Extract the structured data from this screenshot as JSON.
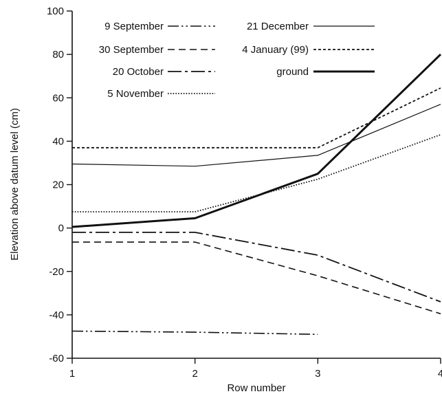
{
  "chart_data": {
    "type": "line",
    "title": "",
    "xlabel": "Row number",
    "ylabel": "Elevation above datum level (cm)",
    "xlim": [
      1,
      4
    ],
    "ylim": [
      -60,
      100
    ],
    "xticks": [
      1,
      2,
      3,
      4
    ],
    "yticks": [
      -60,
      -40,
      -20,
      0,
      20,
      40,
      60,
      80,
      100
    ],
    "grid": false,
    "legend_position": "top-left",
    "series": [
      {
        "name": "9 September",
        "style": "dashdotdot",
        "color": "#111111",
        "x": [
          1,
          2,
          3
        ],
        "y": [
          -47.5,
          -48,
          -49
        ]
      },
      {
        "name": "30 September",
        "style": "dashed",
        "color": "#111111",
        "x": [
          1,
          2,
          3,
          4
        ],
        "y": [
          -6.5,
          -6.5,
          -22,
          -39.5
        ]
      },
      {
        "name": "20 October",
        "style": "longdashdot",
        "color": "#111111",
        "x": [
          1,
          2,
          3,
          4
        ],
        "y": [
          -2,
          -2,
          -12.5,
          -34
        ]
      },
      {
        "name": "5 November",
        "style": "dotted",
        "color": "#111111",
        "x": [
          1,
          2,
          3,
          4
        ],
        "y": [
          7.5,
          7.5,
          22.5,
          43
        ]
      },
      {
        "name": "21 December",
        "style": "thin",
        "color": "#111111",
        "x": [
          1,
          2,
          3,
          4
        ],
        "y": [
          29.5,
          28.5,
          33.5,
          57
        ]
      },
      {
        "name": "4 January (99)",
        "style": "shortdash",
        "color": "#111111",
        "x": [
          1,
          2,
          3,
          4
        ],
        "y": [
          37,
          37,
          37,
          64.5
        ]
      },
      {
        "name": "ground",
        "style": "thick",
        "color": "#111111",
        "x": [
          1,
          2,
          3,
          4
        ],
        "y": [
          0.5,
          4.5,
          25,
          80
        ]
      }
    ]
  }
}
